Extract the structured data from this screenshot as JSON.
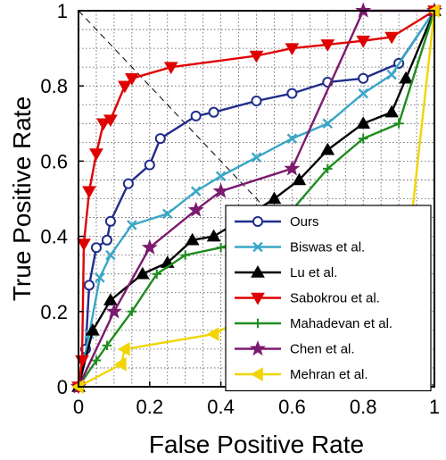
{
  "chart_data": {
    "type": "line",
    "xlabel": "False Positive Rate",
    "ylabel": "True Positive Rate",
    "xlim": [
      0,
      1
    ],
    "ylim": [
      0,
      1
    ],
    "x_ticks": [
      "0",
      "0.2",
      "0.4",
      "0.6",
      "0.8",
      "1"
    ],
    "y_ticks": [
      "0",
      "0.2",
      "0.4",
      "0.6",
      "0.8",
      "1"
    ],
    "grid": true,
    "legend_position": "bottom-right",
    "diagonal_reference": [
      [
        0,
        1
      ],
      [
        1,
        0
      ]
    ],
    "series": [
      {
        "name": "Ours",
        "color": "#1f2d8a",
        "marker": "circle",
        "points": [
          [
            0,
            0
          ],
          [
            0.02,
            0.1
          ],
          [
            0.03,
            0.27
          ],
          [
            0.05,
            0.37
          ],
          [
            0.08,
            0.39
          ],
          [
            0.09,
            0.44
          ],
          [
            0.14,
            0.54
          ],
          [
            0.2,
            0.59
          ],
          [
            0.23,
            0.66
          ],
          [
            0.33,
            0.72
          ],
          [
            0.38,
            0.73
          ],
          [
            0.5,
            0.76
          ],
          [
            0.6,
            0.78
          ],
          [
            0.7,
            0.81
          ],
          [
            0.8,
            0.82
          ],
          [
            0.9,
            0.86
          ],
          [
            1,
            1
          ]
        ]
      },
      {
        "name": "Biswas et al.",
        "color": "#3aa6c7",
        "marker": "x",
        "points": [
          [
            0,
            0
          ],
          [
            0.03,
            0.14
          ],
          [
            0.06,
            0.29
          ],
          [
            0.09,
            0.35
          ],
          [
            0.15,
            0.43
          ],
          [
            0.25,
            0.46
          ],
          [
            0.33,
            0.52
          ],
          [
            0.4,
            0.56
          ],
          [
            0.5,
            0.61
          ],
          [
            0.6,
            0.66
          ],
          [
            0.7,
            0.7
          ],
          [
            0.8,
            0.78
          ],
          [
            0.88,
            0.83
          ],
          [
            1,
            1
          ]
        ]
      },
      {
        "name": "Lu et al.",
        "color": "#000000",
        "marker": "triangle-up",
        "points": [
          [
            0,
            0
          ],
          [
            0.04,
            0.15
          ],
          [
            0.09,
            0.23
          ],
          [
            0.18,
            0.3
          ],
          [
            0.25,
            0.33
          ],
          [
            0.32,
            0.39
          ],
          [
            0.38,
            0.4
          ],
          [
            0.45,
            0.44
          ],
          [
            0.55,
            0.5
          ],
          [
            0.62,
            0.55
          ],
          [
            0.7,
            0.63
          ],
          [
            0.8,
            0.7
          ],
          [
            0.88,
            0.73
          ],
          [
            0.92,
            0.82
          ],
          [
            1,
            1
          ]
        ]
      },
      {
        "name": "Sabokrou et al.",
        "color": "#e00000",
        "marker": "triangle-down",
        "points": [
          [
            0,
            0
          ],
          [
            0.01,
            0.07
          ],
          [
            0.015,
            0.38
          ],
          [
            0.03,
            0.52
          ],
          [
            0.05,
            0.62
          ],
          [
            0.07,
            0.7
          ],
          [
            0.09,
            0.71
          ],
          [
            0.13,
            0.8
          ],
          [
            0.15,
            0.82
          ],
          [
            0.26,
            0.85
          ],
          [
            0.5,
            0.88
          ],
          [
            0.6,
            0.9
          ],
          [
            0.7,
            0.91
          ],
          [
            0.8,
            0.92
          ],
          [
            0.88,
            0.93
          ],
          [
            1,
            1
          ]
        ]
      },
      {
        "name": "Mahadevan et al.",
        "color": "#1e8c1e",
        "marker": "plus",
        "points": [
          [
            0,
            0
          ],
          [
            0.05,
            0.07
          ],
          [
            0.08,
            0.11
          ],
          [
            0.15,
            0.2
          ],
          [
            0.22,
            0.3
          ],
          [
            0.3,
            0.35
          ],
          [
            0.4,
            0.37
          ],
          [
            0.5,
            0.4
          ],
          [
            0.6,
            0.47
          ],
          [
            0.7,
            0.58
          ],
          [
            0.8,
            0.66
          ],
          [
            0.9,
            0.7
          ],
          [
            1,
            1
          ]
        ]
      },
      {
        "name": "Chen et al.",
        "color": "#7b1a6e",
        "marker": "star",
        "points": [
          [
            0,
            0
          ],
          [
            0.1,
            0.2
          ],
          [
            0.2,
            0.37
          ],
          [
            0.33,
            0.47
          ],
          [
            0.4,
            0.52
          ],
          [
            0.6,
            0.58
          ],
          [
            0.8,
            1
          ],
          [
            1,
            1
          ]
        ]
      },
      {
        "name": "Mehran et al.",
        "color": "#f2d500",
        "marker": "triangle-left",
        "points": [
          [
            0,
            0
          ],
          [
            0.12,
            0.06
          ],
          [
            0.13,
            0.1
          ],
          [
            0.38,
            0.14
          ],
          [
            0.5,
            0.2
          ],
          [
            0.93,
            0.4
          ],
          [
            1,
            1
          ]
        ]
      }
    ]
  }
}
